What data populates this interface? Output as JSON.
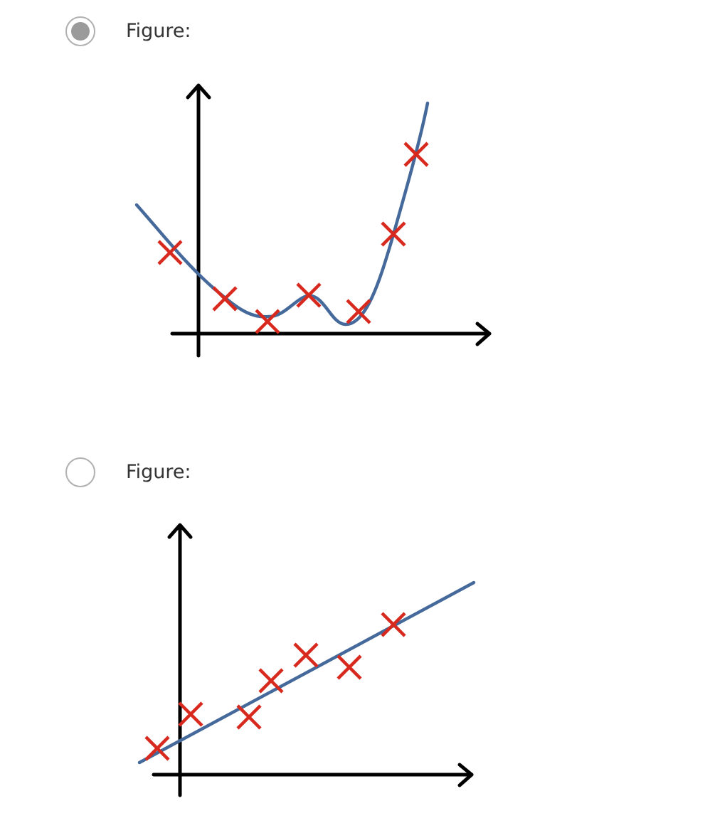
{
  "options": [
    {
      "label": "Figure:",
      "selected": true,
      "figure": {
        "curve_kind": "high-order polynomial",
        "data_marker": "red-cross",
        "fit_color": "#44699a",
        "marker_color": "#d8291e",
        "axis_color": "#000000"
      }
    },
    {
      "label": "Figure:",
      "selected": false,
      "figure": {
        "curve_kind": "straight line",
        "data_marker": "red-cross",
        "fit_color": "#44699a",
        "marker_color": "#d8291e",
        "axis_color": "#000000"
      }
    }
  ],
  "radio_colors": {
    "border": "#b0b0b0",
    "selected_fill": "#9b9b9b"
  }
}
